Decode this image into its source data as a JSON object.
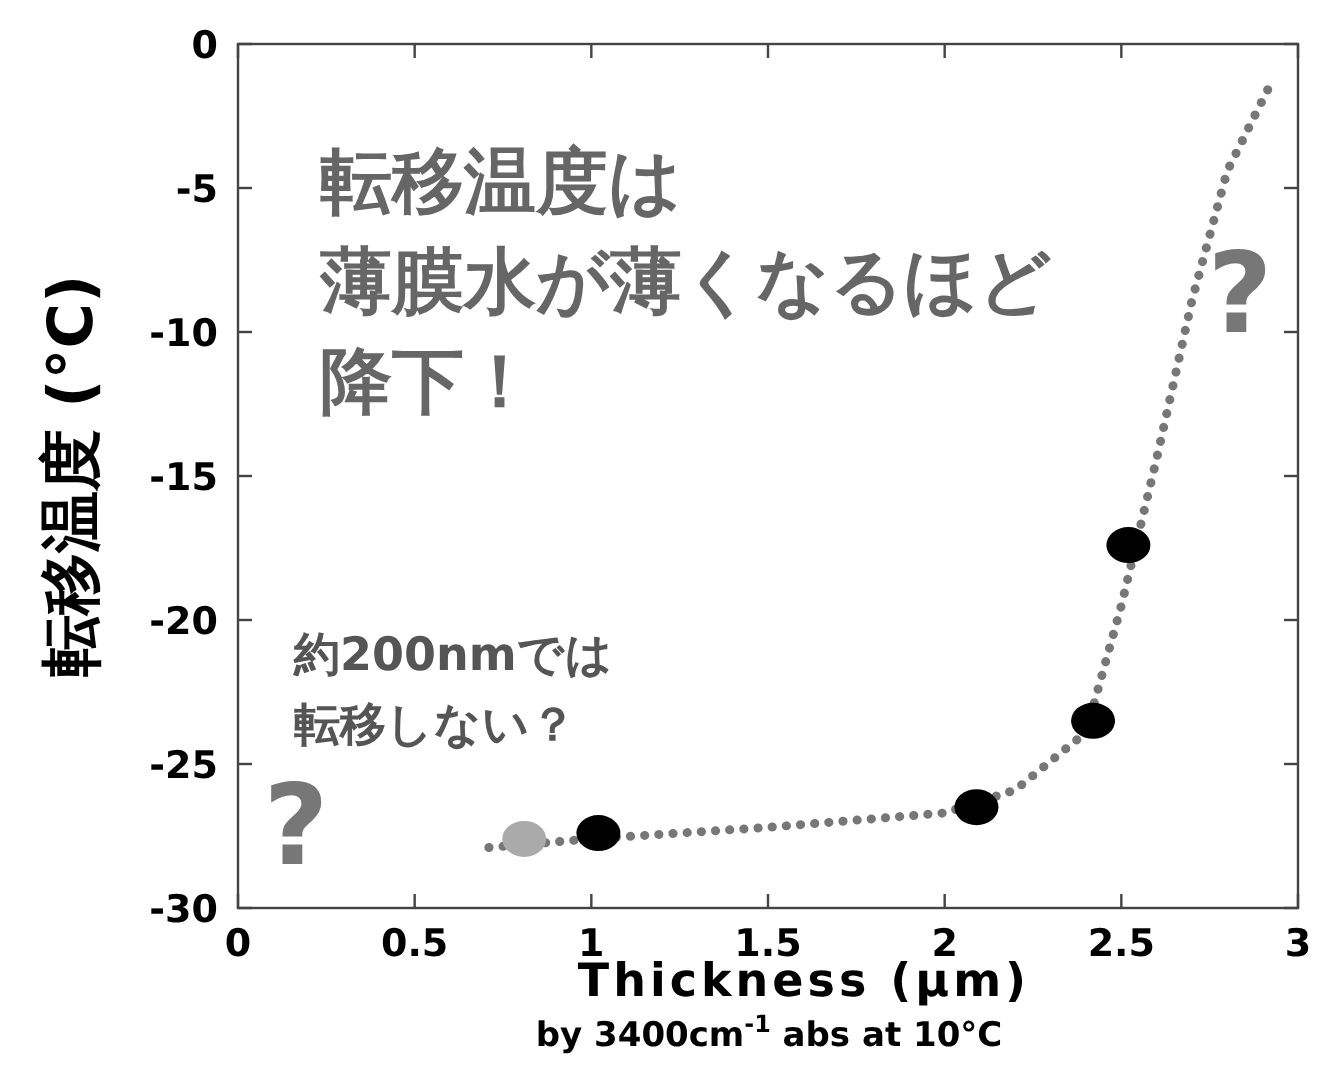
{
  "chart_data": {
    "type": "scatter",
    "xlabel": "Thickness (μm)",
    "ylabel": "転移温度 (°C)",
    "xlim": [
      0,
      3
    ],
    "ylim": [
      -30,
      0
    ],
    "xticks": [
      0,
      0.5,
      1,
      1.5,
      2,
      2.5,
      3
    ],
    "yticks": [
      0,
      -5,
      -10,
      -15,
      -20,
      -25,
      -30
    ],
    "grid": false,
    "marker": "circle",
    "series": [
      {
        "type": "line",
        "color": "#777777",
        "line_style": "dotted",
        "marker": "none",
        "x": [
          0.71,
          1.0,
          1.5,
          2.0,
          2.2,
          2.4,
          2.5,
          2.6,
          2.7,
          2.8,
          2.93
        ],
        "values": [
          -27.9,
          -27.6,
          -27.2,
          -26.7,
          -25.9,
          -23.9,
          -19.5,
          -14.4,
          -8.9,
          -4.4,
          -1.2
        ]
      },
      {
        "color": "#aaaaaa",
        "x": [
          0.81
        ],
        "values": [
          -27.6
        ]
      },
      {
        "color": "#000000",
        "x": [
          1.02,
          2.09,
          2.42,
          2.52
        ],
        "values": [
          -27.4,
          -26.5,
          -23.5,
          -17.4
        ]
      }
    ],
    "annotations": [
      "転移温度は",
      "薄膜水が薄くなるほど",
      "降下！",
      "約200nmでは",
      "転移しない？",
      "?",
      "?",
      "by 3400cm$^{-1}$ abs at 10°C"
    ]
  }
}
